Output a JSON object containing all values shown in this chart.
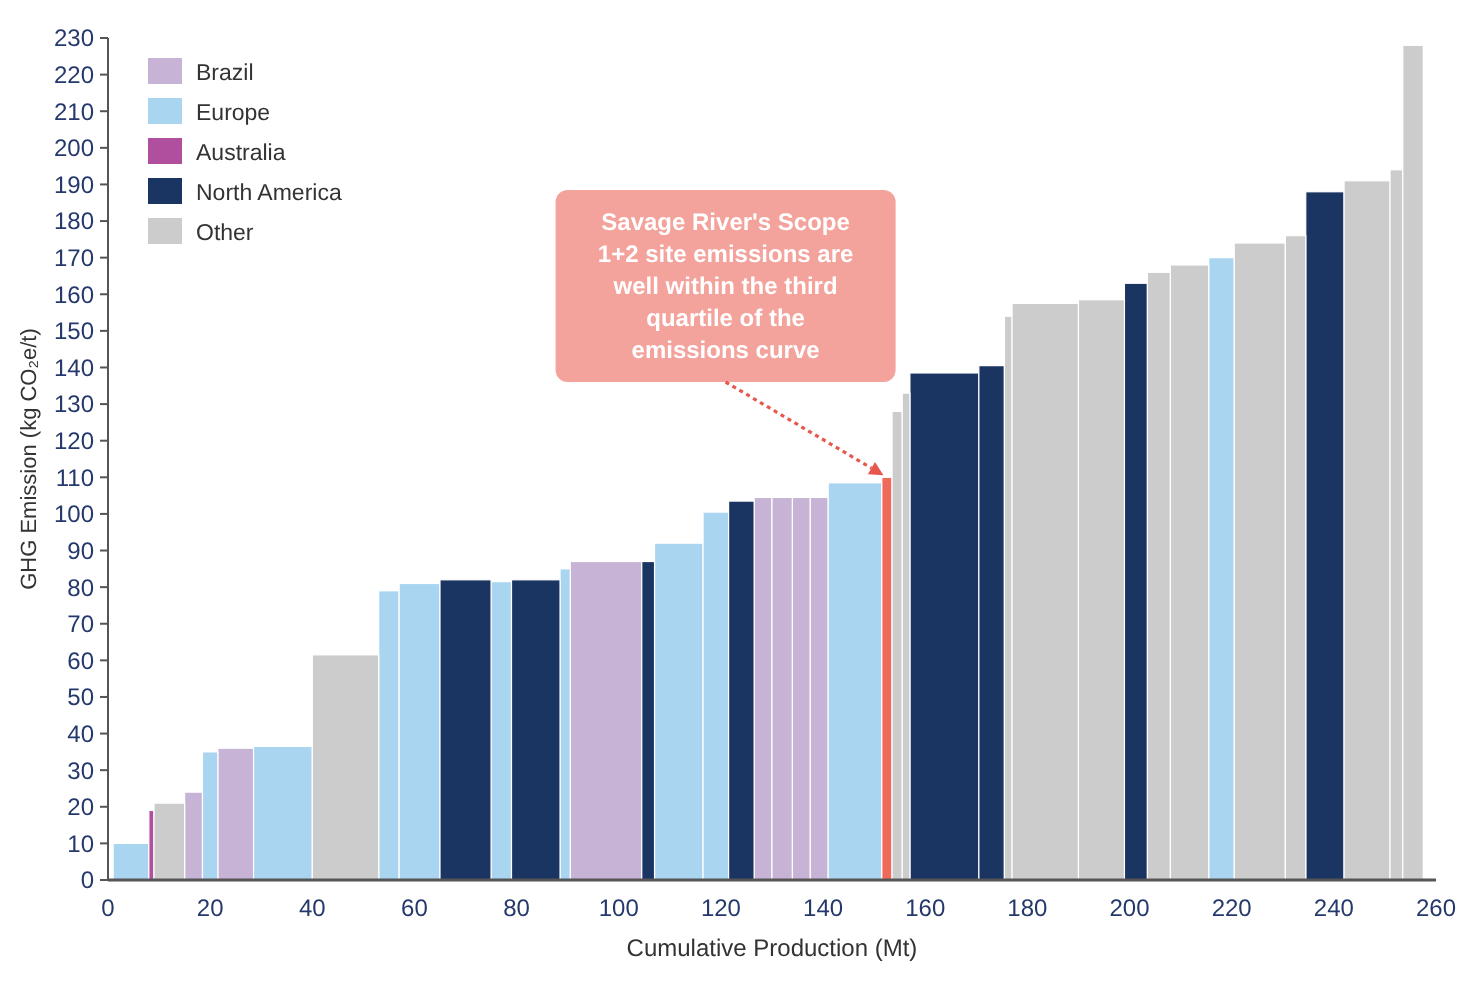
{
  "chart_data": {
    "type": "histogram",
    "xlabel": "Cumulative Production (Mt)",
    "ylabel": "GHG Emission (kg CO₂e/t)",
    "xlim": [
      0,
      260
    ],
    "xticks": [
      0,
      20,
      40,
      60,
      80,
      100,
      120,
      140,
      160,
      180,
      200,
      220,
      240,
      260
    ],
    "ylim": [
      0,
      230
    ],
    "yticks": [
      0,
      10,
      20,
      30,
      40,
      50,
      60,
      70,
      80,
      90,
      100,
      110,
      120,
      130,
      140,
      150,
      160,
      170,
      180,
      190,
      200,
      210,
      220,
      230
    ],
    "grid": false,
    "legend": "top left",
    "bins": [
      1,
      8,
      9,
      15,
      18.5,
      21.5,
      28.5,
      40,
      53,
      57,
      65,
      75,
      79,
      88.5,
      90.5,
      104.5,
      107,
      116.5,
      121.5,
      126.5,
      130,
      134,
      137.5,
      141,
      151.5,
      153.5,
      155.5,
      157,
      170.5,
      175.5,
      177,
      190,
      199,
      203.5,
      208,
      215.5,
      220.5,
      230.5,
      234.5,
      242,
      251,
      253.5,
      257.5
    ],
    "series": [
      {
        "name": "Brazil",
        "color": "#c6b3d6",
        "values": [
          null,
          null,
          null,
          24,
          null,
          36,
          null,
          null,
          null,
          null,
          null,
          null,
          null,
          null,
          87,
          null,
          null,
          null,
          null,
          104.5,
          104.5,
          104.5,
          104.5,
          null,
          null,
          null,
          null,
          null,
          null,
          null,
          null,
          null,
          null,
          null,
          null,
          null,
          null,
          null,
          null,
          null,
          null,
          null
        ]
      },
      {
        "name": "Europe",
        "color": "#a9d5f0",
        "values": [
          10,
          null,
          null,
          null,
          35,
          null,
          36.5,
          null,
          79,
          81,
          null,
          81.5,
          null,
          85,
          null,
          null,
          92,
          100.5,
          null,
          null,
          null,
          null,
          null,
          108.5,
          null,
          null,
          null,
          null,
          null,
          null,
          null,
          null,
          null,
          null,
          null,
          170,
          null,
          null,
          null,
          null,
          null,
          null
        ]
      },
      {
        "name": "Australia",
        "color": "#b04f9e",
        "values": [
          null,
          19,
          null,
          null,
          null,
          null,
          null,
          null,
          null,
          null,
          null,
          null,
          null,
          null,
          null,
          null,
          null,
          null,
          null,
          null,
          null,
          null,
          null,
          null,
          null,
          null,
          null,
          null,
          null,
          null,
          null,
          null,
          null,
          null,
          null,
          null,
          null,
          null,
          null,
          null,
          null,
          null
        ]
      },
      {
        "name": "North America",
        "color": "#1b3563",
        "values": [
          null,
          null,
          null,
          null,
          null,
          null,
          null,
          null,
          null,
          null,
          82,
          null,
          82,
          null,
          null,
          87,
          null,
          null,
          103.5,
          null,
          null,
          null,
          null,
          null,
          null,
          null,
          null,
          138.5,
          140.5,
          null,
          null,
          null,
          163,
          null,
          null,
          null,
          null,
          null,
          188,
          null,
          null,
          null
        ]
      },
      {
        "color": "#f06a5a",
        "values": [
          null,
          null,
          null,
          null,
          null,
          null,
          null,
          null,
          null,
          null,
          null,
          null,
          null,
          null,
          null,
          null,
          null,
          null,
          null,
          null,
          null,
          null,
          null,
          null,
          110,
          null,
          null,
          null,
          null,
          null,
          null,
          null,
          null,
          null,
          null,
          null,
          null,
          null,
          null,
          null,
          null,
          null
        ]
      },
      {
        "name": "Other",
        "color": "#cccccc",
        "values": [
          null,
          null,
          21,
          null,
          null,
          null,
          null,
          61.5,
          null,
          null,
          null,
          null,
          null,
          null,
          null,
          null,
          null,
          null,
          null,
          null,
          null,
          null,
          null,
          null,
          null,
          128,
          133,
          null,
          null,
          154,
          157.5,
          158.5,
          null,
          166,
          168,
          null,
          174,
          176,
          null,
          191,
          194,
          228
        ]
      }
    ],
    "annotations": [
      {
        "text": "Savage River's Scope 1+2 site emissions are well within the third quartile of the emissions curve",
        "x": 152.5,
        "y": 110
      }
    ]
  }
}
